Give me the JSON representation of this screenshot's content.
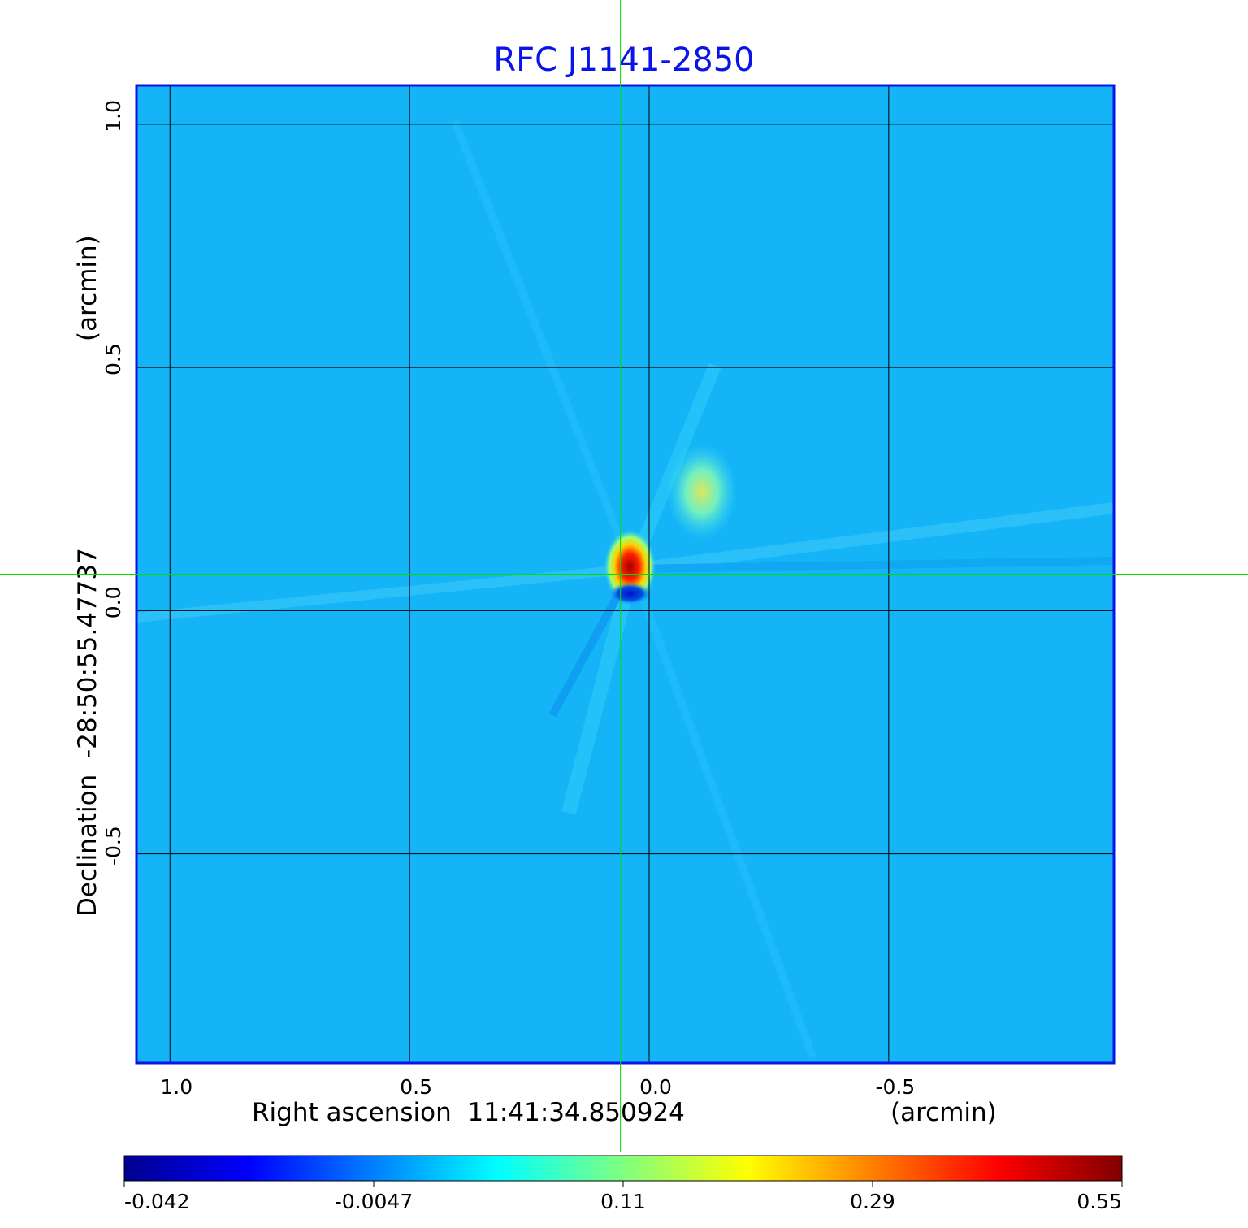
{
  "chart_data": {
    "type": "heatmap",
    "title": "RFC J1141-2850",
    "xlabel": "Right ascension  11:41:34.850924",
    "xlabel_unit": "(arcmin)",
    "ylabel": "Declination  -28:50:55.47737",
    "ylabel_unit": "(arcmin)",
    "x_ticks": [
      1.0,
      0.5,
      0.0,
      -0.5
    ],
    "x_tick_labels": [
      "1.0",
      "0.5",
      "0.0",
      "-0.5"
    ],
    "y_ticks": [
      1.0,
      0.5,
      0.0,
      -0.5
    ],
    "y_tick_labels": [
      "1.0",
      "0.5",
      "0.0",
      "-0.5"
    ],
    "xlim": [
      1.07,
      -0.97
    ],
    "ylim": [
      -0.93,
      1.08
    ],
    "grid": true,
    "colorbar": {
      "position": "bottom",
      "tick_labels": [
        "-0.042",
        "-0.0047",
        "0.11",
        "0.29",
        "0.55"
      ],
      "colors": [
        "#00008f",
        "#0000ff",
        "#0080ff",
        "#00ffff",
        "#80ff80",
        "#ffff00",
        "#ff8000",
        "#ff0000",
        "#800000"
      ]
    },
    "background_color": "#14b4f6",
    "crosshair": {
      "x": 0.06,
      "y": 0.075,
      "color": "#00e000"
    },
    "sources": [
      {
        "x": 0.04,
        "y": 0.09,
        "peak": 0.55
      },
      {
        "x": 0.04,
        "y": 0.035,
        "peak": -0.042
      },
      {
        "x": -0.11,
        "y": 0.245,
        "peak": 0.2
      }
    ]
  }
}
